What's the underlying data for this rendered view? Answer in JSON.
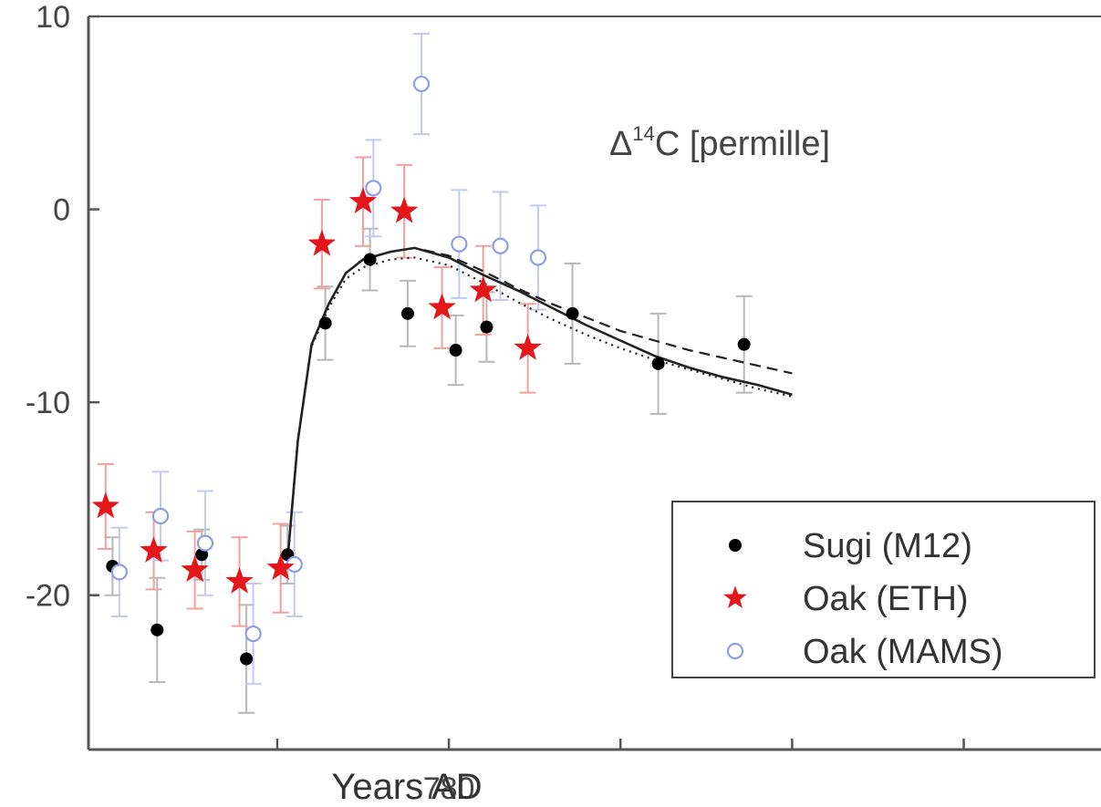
{
  "chart_data": {
    "type": "scatter",
    "title": "",
    "xlabel": "Years AD",
    "ylabel": "",
    "annotation": {
      "prefix": "Δ",
      "superscript": "14",
      "suffix": "C [permille]"
    },
    "xlim": [
      769.5,
      799
    ],
    "ylim": [
      -28,
      10
    ],
    "x_ticks": [
      775,
      780,
      785,
      790,
      795
    ],
    "x_tick_labels": [
      "",
      "780",
      "",
      "",
      ""
    ],
    "y_ticks": [
      10,
      0,
      -10,
      -20
    ],
    "y_tick_labels": [
      "10",
      "0",
      "-10",
      "-20"
    ],
    "grid": false,
    "legend_position": "bottom-right",
    "series": [
      {
        "name": "Sugi (M12)",
        "marker": "filled-circle",
        "color": "#000000",
        "error_color": "#b8b8b8",
        "points": [
          {
            "x": 770.2,
            "y": -18.5,
            "err": 1.5
          },
          {
            "x": 771.5,
            "y": -21.8,
            "err": 2.7
          },
          {
            "x": 772.8,
            "y": -17.9,
            "err": 1.3
          },
          {
            "x": 774.1,
            "y": -23.3,
            "err": 2.8
          },
          {
            "x": 775.3,
            "y": -17.9,
            "err": 1.5
          },
          {
            "x": 776.4,
            "y": -5.9,
            "err": 1.9
          },
          {
            "x": 777.7,
            "y": -2.6,
            "err": 1.6
          },
          {
            "x": 778.8,
            "y": -5.4,
            "err": 1.7
          },
          {
            "x": 780.2,
            "y": -7.3,
            "err": 1.8
          },
          {
            "x": 781.1,
            "y": -6.1,
            "err": 1.8
          },
          {
            "x": 783.6,
            "y": -5.4,
            "err": 2.6
          },
          {
            "x": 786.1,
            "y": -8.0,
            "err": 2.6
          },
          {
            "x": 788.6,
            "y": -7.0,
            "err": 2.5
          }
        ]
      },
      {
        "name": "Oak (ETH)",
        "marker": "star",
        "color": "#e3161a",
        "error_color": "#f0a0a0",
        "points": [
          {
            "x": 770.0,
            "y": -15.4,
            "err": 2.2
          },
          {
            "x": 771.4,
            "y": -17.7,
            "err": 2.0
          },
          {
            "x": 772.6,
            "y": -18.7,
            "err": 2.0
          },
          {
            "x": 773.9,
            "y": -19.3,
            "err": 2.3
          },
          {
            "x": 775.1,
            "y": -18.6,
            "err": 2.3
          },
          {
            "x": 776.3,
            "y": -1.8,
            "err": 2.3
          },
          {
            "x": 777.5,
            "y": 0.4,
            "err": 2.3
          },
          {
            "x": 778.7,
            "y": -0.1,
            "err": 2.4
          },
          {
            "x": 779.8,
            "y": -5.1,
            "err": 2.1
          },
          {
            "x": 781.0,
            "y": -4.2,
            "err": 2.3
          },
          {
            "x": 782.3,
            "y": -7.2,
            "err": 2.3
          }
        ]
      },
      {
        "name": "Oak (MAMS)",
        "marker": "open-circle",
        "color": "#8f9de6",
        "error_color": "#c3caf2",
        "points": [
          {
            "x": 770.4,
            "y": -18.8,
            "err": 2.3
          },
          {
            "x": 771.6,
            "y": -15.9,
            "err": 2.3
          },
          {
            "x": 772.9,
            "y": -17.3,
            "err": 2.7
          },
          {
            "x": 774.3,
            "y": -22.0,
            "err": 2.6
          },
          {
            "x": 775.5,
            "y": -18.4,
            "err": 2.7
          },
          {
            "x": 777.8,
            "y": 1.1,
            "err": 2.5
          },
          {
            "x": 779.2,
            "y": 6.5,
            "err": 2.6
          },
          {
            "x": 780.3,
            "y": -1.8,
            "err": 2.8
          },
          {
            "x": 781.5,
            "y": -1.9,
            "err": 2.8
          },
          {
            "x": 782.6,
            "y": -2.5,
            "err": 2.7
          }
        ]
      }
    ],
    "model_curves": [
      {
        "style": "solid",
        "points": [
          [
            775.3,
            -18.2
          ],
          [
            775.6,
            -12.0
          ],
          [
            776.0,
            -7.0
          ],
          [
            776.5,
            -4.9
          ],
          [
            777.0,
            -3.3
          ],
          [
            777.5,
            -2.6
          ],
          [
            778.3,
            -2.2
          ],
          [
            779.0,
            -2.0
          ],
          [
            780.0,
            -2.5
          ],
          [
            781.0,
            -3.4
          ],
          [
            782.0,
            -4.2
          ],
          [
            783.0,
            -5.1
          ],
          [
            784.0,
            -6.0
          ],
          [
            785.0,
            -6.8
          ],
          [
            786.0,
            -7.6
          ],
          [
            787.0,
            -8.2
          ],
          [
            788.0,
            -8.7
          ],
          [
            789.0,
            -9.1
          ],
          [
            790.0,
            -9.6
          ]
        ]
      },
      {
        "style": "dashed",
        "points": [
          [
            775.3,
            -18.2
          ],
          [
            775.6,
            -12.0
          ],
          [
            776.0,
            -7.0
          ],
          [
            776.5,
            -4.9
          ],
          [
            777.0,
            -3.3
          ],
          [
            777.5,
            -2.6
          ],
          [
            778.3,
            -2.2
          ],
          [
            779.0,
            -2.0
          ],
          [
            780.0,
            -2.4
          ],
          [
            781.0,
            -3.2
          ],
          [
            782.0,
            -4.1
          ],
          [
            783.0,
            -4.9
          ],
          [
            784.0,
            -5.6
          ],
          [
            785.0,
            -6.3
          ],
          [
            786.0,
            -6.8
          ],
          [
            787.0,
            -7.3
          ],
          [
            788.0,
            -7.7
          ],
          [
            789.0,
            -8.1
          ],
          [
            790.0,
            -8.5
          ]
        ]
      },
      {
        "style": "dotted",
        "points": [
          [
            775.3,
            -18.2
          ],
          [
            775.6,
            -12.0
          ],
          [
            776.0,
            -7.1
          ],
          [
            776.5,
            -5.1
          ],
          [
            777.0,
            -3.6
          ],
          [
            777.5,
            -3.0
          ],
          [
            778.3,
            -2.6
          ],
          [
            779.0,
            -2.5
          ],
          [
            780.0,
            -2.9
          ],
          [
            781.0,
            -3.8
          ],
          [
            782.0,
            -4.8
          ],
          [
            783.0,
            -5.7
          ],
          [
            784.0,
            -6.5
          ],
          [
            785.0,
            -7.2
          ],
          [
            786.0,
            -7.8
          ],
          [
            787.0,
            -8.3
          ],
          [
            788.0,
            -8.8
          ],
          [
            789.0,
            -9.3
          ],
          [
            790.0,
            -9.7
          ]
        ]
      }
    ]
  }
}
